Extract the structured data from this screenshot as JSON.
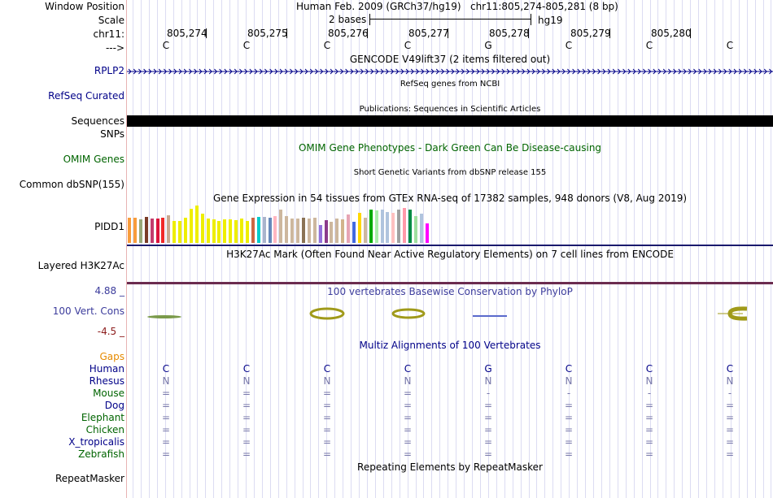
{
  "header": {
    "window_position_label": "Window Position",
    "assembly": "Human Feb. 2009 (GRCh37/hg19)",
    "position": "chr11:805,274-805,281 (8 bp)",
    "scale_label": "Scale",
    "scale_value": "2 bases",
    "scale_db": "hg19",
    "chrom_label": "chr11:",
    "strand_label": "--->"
  },
  "ruler": {
    "positions": [
      "805,274",
      "805,275",
      "805,276",
      "805,277",
      "805,278",
      "805,279",
      "805,280"
    ],
    "bases": [
      "C",
      "C",
      "C",
      "C",
      "G",
      "C",
      "C",
      "C"
    ]
  },
  "tracks": {
    "gencode": {
      "title": "GENCODE V49lift37 (2 items filtered out)",
      "item": "RPLP2"
    },
    "refseq": {
      "label": "RefSeq Curated",
      "title": "RefSeq genes from NCBI"
    },
    "publications": {
      "title": "Publications: Sequences in Scientific Articles"
    },
    "sequences": {
      "label": "Sequences"
    },
    "snps": {
      "label": "SNPs"
    },
    "omim": {
      "label": "OMIM Genes",
      "title": "OMIM Gene Phenotypes - Dark Green Can Be Disease-causing"
    },
    "dbsnp": {
      "label": "Common dbSNP(155)",
      "title": "Short Genetic Variants from dbSNP release 155"
    },
    "gtex": {
      "title": "Gene Expression in 54 tissues from GTEx RNA-seq of 17382 samples, 948 donors (V8, Aug 2019)",
      "gene": "PIDD1"
    },
    "h3k27ac": {
      "label": "Layered H3K27Ac",
      "title": "H3K27Ac Mark (Often Found Near Active Regulatory Elements) on 7 cell lines from ENCODE"
    },
    "phylop": {
      "title": "100 vertebrates Basewise Conservation by PhyloP",
      "label": "100 Vert. Cons",
      "max": "4.88 _",
      "min": "-4.5 _"
    },
    "multiz": {
      "title": "Multiz Alignments of 100 Vertebrates",
      "gaps_label": "Gaps",
      "species": [
        {
          "name": "Human",
          "row": [
            "C",
            "C",
            "C",
            "C",
            "G",
            "C",
            "C",
            "C"
          ]
        },
        {
          "name": "Rhesus",
          "row": [
            "N",
            "N",
            "N",
            "N",
            "N",
            "N",
            "N",
            "N"
          ]
        },
        {
          "name": "Mouse",
          "row": [
            "=",
            "=",
            "=",
            "=",
            "-",
            "-",
            "-",
            "-"
          ]
        },
        {
          "name": "Dog",
          "row": [
            "=",
            "=",
            "=",
            "=",
            "=",
            "=",
            "=",
            "="
          ]
        },
        {
          "name": "Elephant",
          "row": [
            "=",
            "=",
            "=",
            "=",
            "=",
            "=",
            "=",
            "="
          ]
        },
        {
          "name": "Chicken",
          "row": [
            "=",
            "=",
            "=",
            "=",
            "=",
            "=",
            "=",
            "="
          ]
        },
        {
          "name": "X_tropicalis",
          "row": [
            "=",
            "=",
            "=",
            "=",
            "=",
            "=",
            "=",
            "="
          ]
        },
        {
          "name": "Zebrafish",
          "row": [
            "=",
            "=",
            "=",
            "=",
            "=",
            "=",
            "=",
            "="
          ]
        }
      ]
    },
    "repeatmasker": {
      "label": "RepeatMasker",
      "title": "Repeating Elements by RepeatMasker"
    }
  },
  "colors": {
    "label_blue": "#000088",
    "label_green": "#006400",
    "gaps_orange": "#e68a00",
    "phylop_blue": "#3c3c9c",
    "phylop_red": "#8b1a1a",
    "rhesus_gray": "#7777aa",
    "h3k27ac_bar": "#6b2c4f"
  },
  "gtex_colors": [
    "#f89c3c",
    "#f89c3c",
    "#98a878",
    "#7a3c28",
    "#c23c6e",
    "#dc143c",
    "#f02828",
    "#c8a890",
    "#eeee00",
    "#eeee00",
    "#eeee00",
    "#eeee00",
    "#eeee00",
    "#eeee00",
    "#eeee00",
    "#eeee00",
    "#eeee00",
    "#eeee00",
    "#eeee00",
    "#eeee00",
    "#eeee00",
    "#eeee00",
    "#cc6644",
    "#00cccc",
    "#aab4cc",
    "#6688bb",
    "#ffb6c1",
    "#cdb79e",
    "#cdb79e",
    "#cdb79e",
    "#cdb79e",
    "#8b7355",
    "#cdb79e",
    "#cdb79e",
    "#9370db",
    "#8b3a8b",
    "#cdb79e",
    "#cdb79e",
    "#d2b48c",
    "#e6a4b4",
    "#4169e1",
    "#ffd700",
    "#cdb79e",
    "#00aa00",
    "#aaeeaa",
    "#b0c4de",
    "#b0c4de",
    "#ffc1c1",
    "#a0a0a0",
    "#ff99aa",
    "#008b45",
    "#a0e0a0",
    "#b0c4de",
    "#ff00ff"
  ],
  "gtex_values": [
    0.62,
    0.62,
    0.58,
    0.64,
    0.6,
    0.6,
    0.62,
    0.68,
    0.54,
    0.54,
    0.62,
    0.84,
    0.92,
    0.72,
    0.6,
    0.58,
    0.54,
    0.58,
    0.58,
    0.56,
    0.6,
    0.54,
    0.62,
    0.64,
    0.64,
    0.62,
    0.66,
    0.82,
    0.66,
    0.6,
    0.6,
    0.62,
    0.6,
    0.62,
    0.44,
    0.56,
    0.52,
    0.6,
    0.58,
    0.7,
    0.52,
    0.74,
    0.62,
    0.82,
    0.8,
    0.82,
    0.76,
    0.74,
    0.82,
    0.86,
    0.82,
    0.66,
    0.72,
    0.48
  ]
}
